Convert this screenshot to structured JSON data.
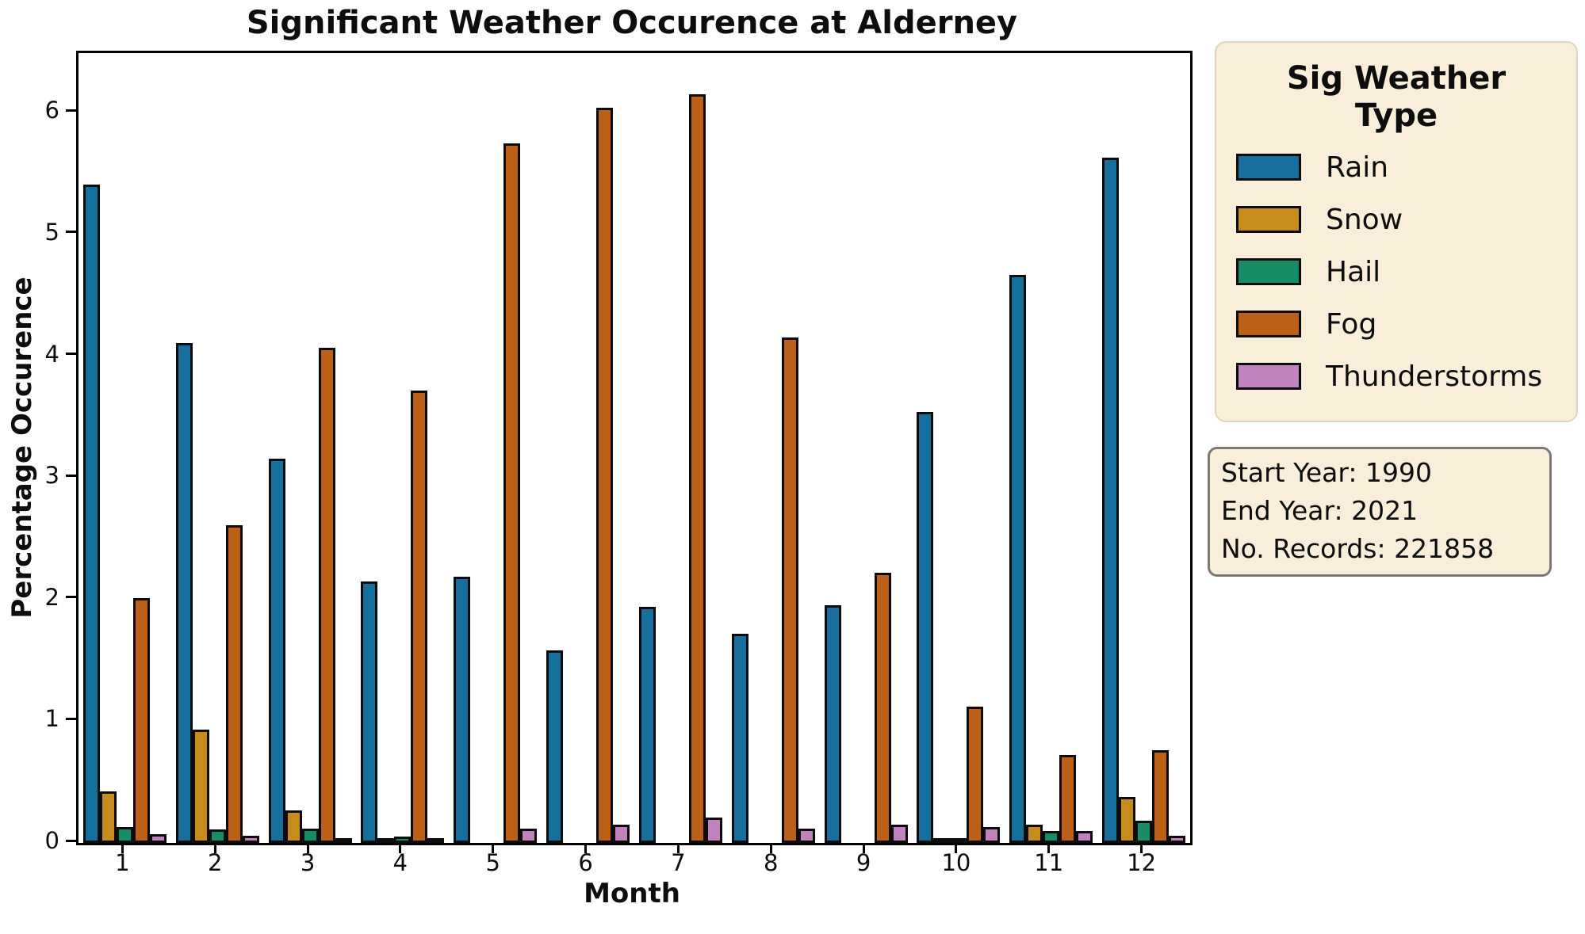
{
  "title": "Significant Weather Occurence at Alderney",
  "axes": {
    "xlabel": "Month",
    "ylabel": "Percentage Occurence",
    "yticks": [
      0,
      1,
      2,
      3,
      4,
      5,
      6
    ]
  },
  "legend": {
    "title": "Sig Weather Type",
    "items": [
      {
        "label": "Rain",
        "color": "#176f9e"
      },
      {
        "label": "Snow",
        "color": "#c88c1e"
      },
      {
        "label": "Hail",
        "color": "#168d66"
      },
      {
        "label": "Fog",
        "color": "#bc5f17"
      },
      {
        "label": "Thunderstorms",
        "color": "#c183bd"
      }
    ]
  },
  "info_box": {
    "lines": [
      "Start Year: 1990",
      "End Year: 2021",
      "No. Records: 221858"
    ]
  },
  "chart_data": {
    "type": "bar",
    "title": "Significant Weather Occurence at Alderney",
    "xlabel": "Month",
    "ylabel": "Percentage Occurence",
    "categories": [
      "1",
      "2",
      "3",
      "4",
      "5",
      "6",
      "7",
      "8",
      "9",
      "10",
      "11",
      "12"
    ],
    "series": [
      {
        "name": "Rain",
        "color": "#176f9e",
        "values": [
          5.41,
          4.11,
          3.16,
          2.15,
          2.19,
          1.58,
          1.94,
          1.72,
          1.95,
          3.54,
          4.67,
          5.63
        ]
      },
      {
        "name": "Snow",
        "color": "#c88c1e",
        "values": [
          0.42,
          0.93,
          0.27,
          0.03,
          0,
          0,
          0,
          0,
          0,
          0.02,
          0.15,
          0.38
        ]
      },
      {
        "name": "Hail",
        "color": "#168d66",
        "values": [
          0.13,
          0.11,
          0.12,
          0.05,
          0,
          0,
          0,
          0,
          0,
          0.02,
          0.1,
          0.18
        ]
      },
      {
        "name": "Fog",
        "color": "#bc5f17",
        "values": [
          2.01,
          2.61,
          4.07,
          3.72,
          5.75,
          6.04,
          6.15,
          4.15,
          2.22,
          1.12,
          0.72,
          0.76
        ]
      },
      {
        "name": "Thunderstorms",
        "color": "#c183bd",
        "values": [
          0.07,
          0.06,
          0.02,
          0.04,
          0.12,
          0.15,
          0.21,
          0.12,
          0.15,
          0.13,
          0.1,
          0.06
        ]
      }
    ],
    "ylim": [
      0,
      6.49
    ],
    "grid": false,
    "legend_position": "outside-right",
    "annotations": [
      "Start Year: 1990",
      "End Year: 2021",
      "No. Records: 221858"
    ]
  }
}
